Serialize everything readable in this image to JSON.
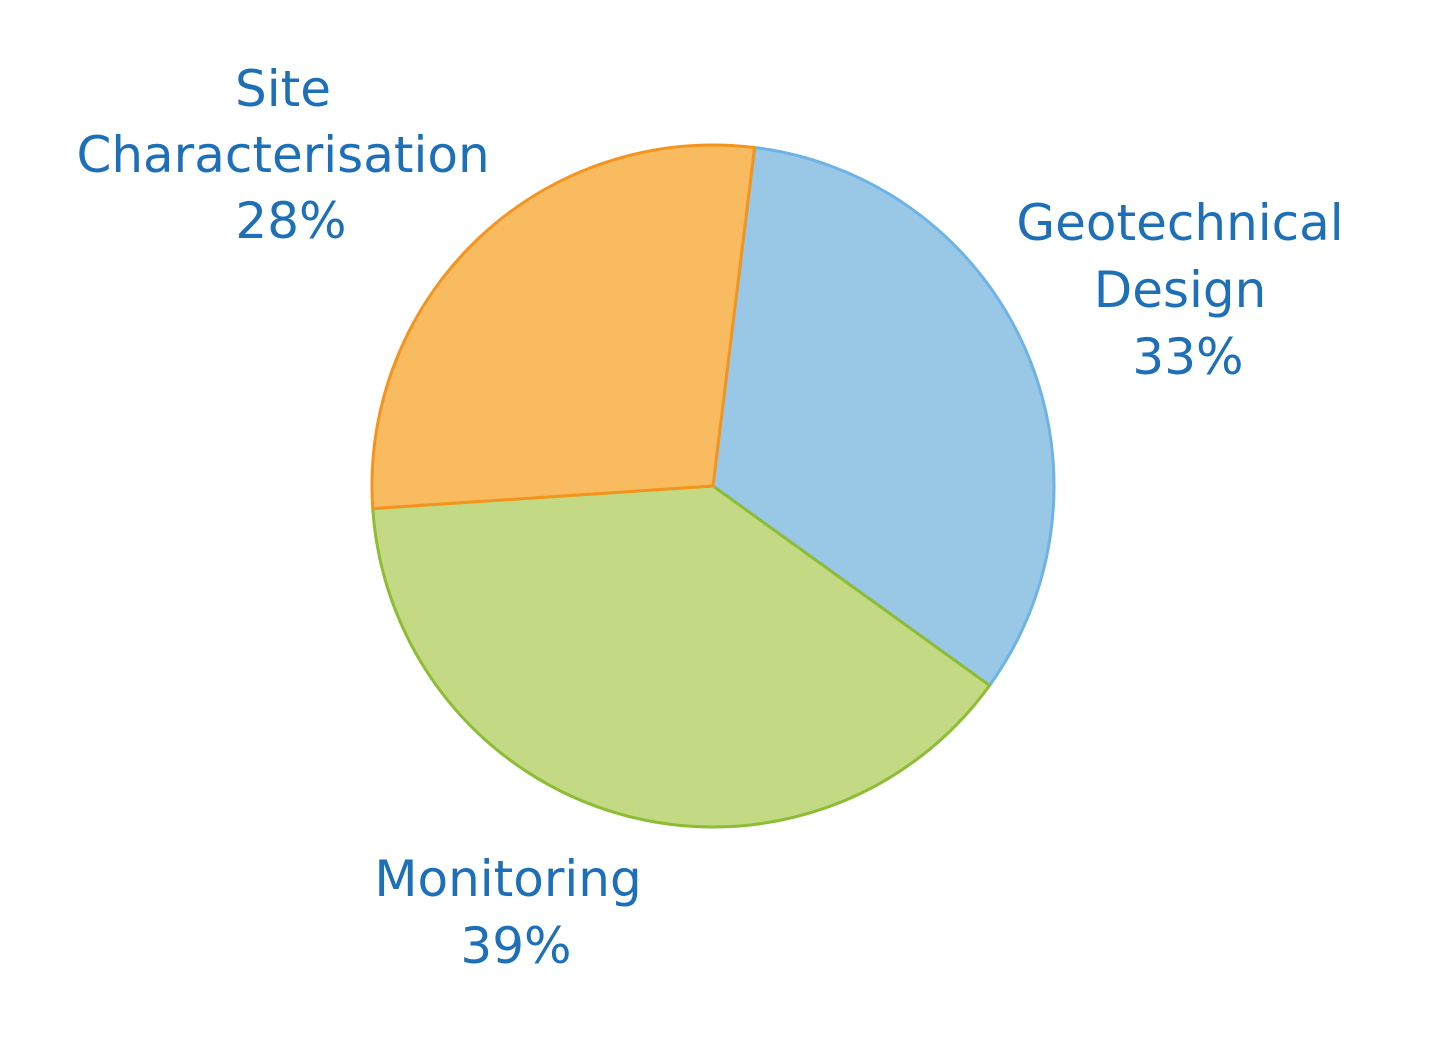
{
  "chart_data": {
    "type": "pie",
    "slices": [
      {
        "label_lines": [
          "Geotechnical",
          "Design"
        ],
        "percent_label": "33%",
        "value": 33,
        "fill": "#99c8e6",
        "stroke": "#6fb3e6"
      },
      {
        "label_lines": [
          "Monitoring"
        ],
        "percent_label": "39%",
        "value": 39,
        "fill": "#c4d984",
        "stroke": "#8cbd34"
      },
      {
        "label_lines": [
          "Site",
          "Characterisation"
        ],
        "percent_label": "28%",
        "value": 28,
        "fill": "#f9bb5f",
        "stroke": "#f5941d"
      }
    ],
    "start_angle_deg": 7,
    "direction": "clockwise",
    "legend": "none",
    "label_color": "#1d6fb8"
  }
}
